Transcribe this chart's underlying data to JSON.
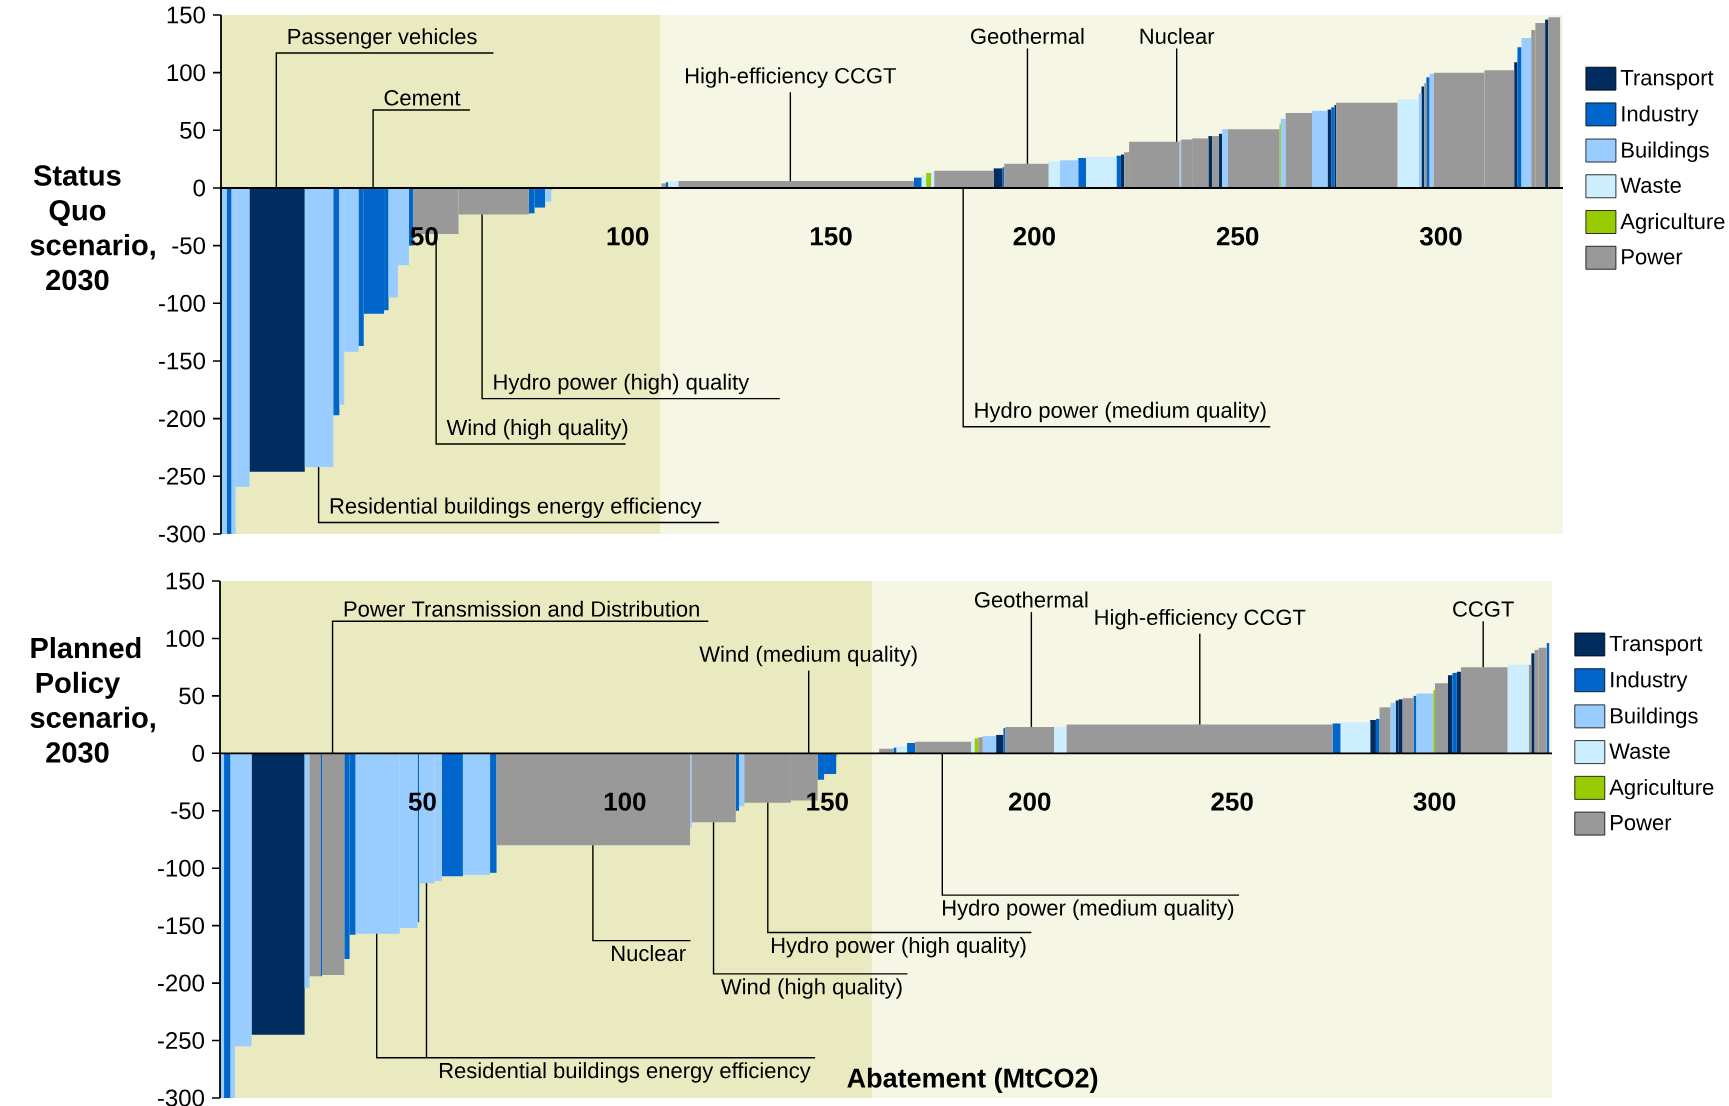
{
  "chart_data": [
    {
      "type": "histogram",
      "ylabel": "Status Quo scenario, 2030",
      "bins": [
        0,
        1.4,
        2.6,
        3.6,
        7,
        20.6,
        27.6,
        29.1,
        30.3,
        33.8,
        35.1,
        40.1,
        41.2,
        43.5,
        46.2,
        47.3,
        58.4,
        75.7,
        77.1,
        79.7,
        81.2,
        81.5,
        108.3,
        109.4,
        110,
        112.5,
        170.4,
        172.3,
        173.4,
        174.6,
        175.4,
        190,
        192.2,
        192.6,
        203.5,
        206.3,
        210.8,
        212.7,
        220.2,
        221.3,
        222.1,
        223.3,
        235.7,
        236.1,
        238.8,
        242.8,
        243.7,
        245.4,
        246.2,
        247.6,
        260.3,
        260.6,
        261.8,
        268.3,
        272.1,
        273,
        273.8,
        274.2,
        289.3,
        294.5,
        295.2,
        295.9,
        296.4,
        297.2,
        298.2,
        310.7,
        318,
        318.8,
        319.8,
        322.2,
        323.2,
        325.6,
        326.4,
        329.3
      ],
      "series": [
        {
          "name": "Transport",
          "color": "#002c5f",
          "values": [
            null,
            null,
            null,
            null,
            -246,
            null,
            null,
            null,
            null,
            null,
            null,
            null,
            null,
            null,
            null,
            null,
            null,
            null,
            null,
            null,
            null,
            null,
            null,
            null,
            null,
            null,
            null,
            null,
            null,
            null,
            null,
            17,
            null,
            null,
            null,
            null,
            null,
            null,
            null,
            29,
            null,
            null,
            null,
            null,
            null,
            45,
            null,
            47,
            null,
            null,
            null,
            null,
            null,
            null,
            68,
            null,
            72,
            null,
            null,
            null,
            88,
            null,
            null,
            null,
            null,
            null,
            109,
            null,
            null,
            null,
            null,
            146,
            null
          ]
        },
        {
          "name": "Industry",
          "color": "#0066cc",
          "values": [
            null,
            -300,
            null,
            null,
            null,
            null,
            -197,
            null,
            null,
            -137,
            -109,
            -106,
            null,
            null,
            -50,
            null,
            null,
            -22,
            -17,
            null,
            null,
            null,
            null,
            5,
            null,
            null,
            9,
            null,
            null,
            null,
            null,
            null,
            18,
            null,
            null,
            null,
            26,
            null,
            28,
            null,
            null,
            null,
            null,
            null,
            null,
            null,
            null,
            null,
            null,
            null,
            null,
            null,
            null,
            null,
            null,
            70,
            null,
            null,
            null,
            null,
            null,
            null,
            96,
            null,
            null,
            null,
            null,
            122,
            null,
            null,
            null,
            null,
            null
          ]
        },
        {
          "name": "Buildings",
          "color": "#99ccff",
          "values": [
            -300,
            null,
            -300,
            -259,
            null,
            -242,
            null,
            -188,
            -142,
            null,
            null,
            null,
            -95,
            -67,
            null,
            null,
            null,
            null,
            null,
            -12,
            null,
            null,
            null,
            null,
            null,
            null,
            null,
            null,
            null,
            null,
            null,
            null,
            null,
            null,
            null,
            24,
            null,
            null,
            null,
            null,
            null,
            null,
            41,
            null,
            null,
            null,
            null,
            null,
            51,
            null,
            null,
            60,
            null,
            67,
            null,
            null,
            null,
            null,
            null,
            82,
            null,
            null,
            null,
            99,
            null,
            null,
            null,
            null,
            130,
            null,
            null,
            null,
            null
          ]
        },
        {
          "name": "Waste",
          "color": "#cceeff",
          "values": [
            null,
            null,
            null,
            null,
            null,
            null,
            null,
            null,
            null,
            null,
            null,
            null,
            null,
            null,
            null,
            null,
            null,
            null,
            null,
            null,
            null,
            null,
            null,
            null,
            6,
            null,
            null,
            11,
            null,
            14,
            null,
            null,
            null,
            null,
            23,
            null,
            null,
            27,
            null,
            null,
            null,
            null,
            null,
            null,
            null,
            null,
            null,
            null,
            null,
            null,
            null,
            null,
            null,
            null,
            null,
            null,
            null,
            null,
            77,
            null,
            null,
            null,
            null,
            null,
            null,
            null,
            null,
            null,
            null,
            null,
            null,
            null,
            null
          ]
        },
        {
          "name": "Agriculture",
          "color": "#99cc00",
          "values": [
            null,
            null,
            null,
            null,
            null,
            null,
            null,
            null,
            null,
            null,
            null,
            null,
            null,
            null,
            null,
            null,
            null,
            null,
            null,
            null,
            -2,
            null,
            null,
            null,
            null,
            null,
            null,
            null,
            13,
            null,
            null,
            null,
            null,
            null,
            null,
            null,
            null,
            null,
            null,
            null,
            null,
            null,
            null,
            null,
            null,
            null,
            null,
            null,
            null,
            null,
            56,
            null,
            null,
            null,
            null,
            null,
            null,
            null,
            null,
            null,
            null,
            null,
            null,
            null,
            null,
            null,
            null,
            null,
            null,
            null,
            null,
            null,
            null
          ]
        },
        {
          "name": "Power",
          "color": "#999999",
          "values": [
            null,
            null,
            null,
            null,
            null,
            null,
            null,
            null,
            null,
            null,
            null,
            null,
            null,
            null,
            null,
            -40,
            -23,
            null,
            null,
            null,
            null,
            null,
            4,
            null,
            null,
            6,
            null,
            null,
            null,
            null,
            15,
            null,
            null,
            21,
            null,
            null,
            null,
            null,
            null,
            null,
            31,
            40,
            null,
            42,
            43,
            null,
            45,
            null,
            null,
            51,
            null,
            null,
            65,
            null,
            null,
            null,
            null,
            74,
            null,
            null,
            null,
            91,
            null,
            null,
            100,
            102,
            null,
            null,
            null,
            137,
            143,
            null,
            148
          ]
        }
      ],
      "xlim": [
        0,
        330
      ],
      "ylim": [
        -300,
        150
      ],
      "xticks": [
        50,
        100,
        150,
        200,
        250,
        300
      ],
      "yticks": [
        -300,
        -250,
        -200,
        -150,
        -100,
        -50,
        0,
        50,
        100,
        150
      ],
      "legend": "right",
      "bands": [
        {
          "axis": "x",
          "from": 0,
          "to": 108,
          "color": "#eaeac0"
        }
      ],
      "annotations": [
        {
          "text": "Passenger vehicles",
          "x": 13.6,
          "y": 0
        },
        {
          "text": "Cement",
          "x": 37.4,
          "y": 0
        },
        {
          "text": "Wind (high quality)",
          "x": 52.9,
          "y": -40
        },
        {
          "text": "Hydro power (high) quality",
          "x": 64.2,
          "y": -23
        },
        {
          "text": "Residential buildings energy efficiency",
          "x": 24,
          "y": -242
        },
        {
          "text": "High-efficiency CCGT",
          "x": 140,
          "y": 6
        },
        {
          "text": "Geothermal",
          "x": 198.3,
          "y": 21
        },
        {
          "text": "Nuclear",
          "x": 235,
          "y": 40
        },
        {
          "text": "Hydro power (medium quality)",
          "x": 182.5,
          "y": 0
        }
      ]
    },
    {
      "type": "histogram",
      "ylabel": "Planned Policy scenario, 2030",
      "xlabel": "Abatement (MtCO2)",
      "bins": [
        0,
        1,
        2.6,
        3.7,
        7.8,
        20.9,
        22.1,
        24.8,
        25.2,
        30.7,
        32,
        33.5,
        44.4,
        48.8,
        49.2,
        53,
        54.8,
        60,
        66.7,
        68.3,
        116.1,
        116.5,
        127.4,
        128.2,
        129.5,
        141,
        147.6,
        149.2,
        152.2,
        152.5,
        162.8,
        166.4,
        167.1,
        169.7,
        171.7,
        185.5,
        186.4,
        187.3,
        188.4,
        191.7,
        193.5,
        194,
        206,
        209.1,
        274.8,
        276.8,
        284.1,
        285.5,
        286.4,
        289.1,
        290.4,
        291.1,
        292.1,
        294.8,
        295.5,
        299.7,
        300.1,
        303.3,
        304.4,
        305.5,
        306.5,
        318,
        323.3,
        323.9,
        324.7,
        325.7,
        327.7,
        328.3
      ],
      "series": [
        {
          "name": "Transport",
          "color": "#002c5f",
          "values": [
            null,
            null,
            null,
            null,
            -245,
            null,
            null,
            null,
            null,
            null,
            null,
            null,
            null,
            null,
            null,
            null,
            null,
            null,
            null,
            null,
            null,
            null,
            null,
            null,
            null,
            null,
            null,
            null,
            null,
            null,
            null,
            null,
            null,
            null,
            null,
            null,
            null,
            null,
            null,
            16,
            null,
            null,
            null,
            null,
            null,
            null,
            29,
            null,
            null,
            null,
            46,
            47,
            null,
            null,
            null,
            null,
            null,
            68,
            null,
            71,
            null,
            null,
            null,
            87,
            null,
            null,
            null
          ]
        },
        {
          "name": "Industry",
          "color": "#0066cc",
          "values": [
            null,
            -300,
            null,
            null,
            null,
            null,
            null,
            -194,
            null,
            -179,
            -158,
            null,
            null,
            -147,
            null,
            null,
            -107,
            null,
            -104,
            null,
            null,
            null,
            -50,
            null,
            null,
            null,
            -23,
            -18,
            null,
            null,
            null,
            5,
            null,
            9,
            null,
            null,
            null,
            null,
            null,
            null,
            22,
            null,
            null,
            null,
            26,
            null,
            null,
            30,
            null,
            null,
            null,
            null,
            null,
            50,
            null,
            null,
            null,
            null,
            70,
            null,
            null,
            null,
            null,
            null,
            null,
            null,
            96
          ]
        },
        {
          "name": "Buildings",
          "color": "#99ccff",
          "values": [
            -300,
            null,
            -300,
            -255,
            null,
            -204,
            null,
            null,
            null,
            null,
            null,
            -157,
            -152,
            null,
            -113,
            -111,
            null,
            -106,
            null,
            null,
            -65,
            null,
            null,
            -46,
            null,
            null,
            null,
            null,
            null,
            null,
            null,
            null,
            null,
            null,
            null,
            null,
            null,
            null,
            15,
            null,
            null,
            null,
            null,
            null,
            null,
            null,
            null,
            null,
            null,
            44,
            null,
            null,
            null,
            null,
            52,
            null,
            null,
            null,
            null,
            null,
            null,
            null,
            null,
            null,
            null,
            null,
            null
          ]
        },
        {
          "name": "Waste",
          "color": "#cceeff",
          "values": [
            null,
            null,
            null,
            null,
            null,
            null,
            null,
            null,
            null,
            null,
            null,
            null,
            null,
            null,
            null,
            null,
            null,
            null,
            null,
            null,
            null,
            null,
            null,
            null,
            null,
            null,
            null,
            null,
            null,
            null,
            null,
            null,
            6,
            null,
            null,
            11,
            null,
            null,
            null,
            null,
            null,
            null,
            23,
            null,
            null,
            27,
            null,
            null,
            null,
            null,
            null,
            null,
            null,
            null,
            null,
            null,
            null,
            null,
            null,
            null,
            null,
            77,
            null,
            null,
            null,
            null,
            null
          ]
        },
        {
          "name": "Agriculture",
          "color": "#99cc00",
          "values": [
            null,
            null,
            null,
            null,
            null,
            null,
            null,
            null,
            null,
            null,
            null,
            null,
            null,
            null,
            null,
            null,
            null,
            null,
            null,
            null,
            null,
            null,
            null,
            null,
            null,
            null,
            null,
            null,
            -3,
            null,
            null,
            null,
            null,
            null,
            null,
            null,
            13,
            null,
            null,
            null,
            null,
            null,
            null,
            null,
            null,
            null,
            null,
            null,
            null,
            null,
            null,
            null,
            null,
            null,
            null,
            55,
            null,
            null,
            null,
            null,
            null,
            null,
            null,
            null,
            null,
            null,
            null
          ]
        },
        {
          "name": "Power",
          "color": "#999999",
          "values": [
            null,
            null,
            null,
            null,
            null,
            null,
            -194,
            null,
            -193,
            null,
            null,
            null,
            null,
            null,
            null,
            null,
            null,
            null,
            null,
            -80,
            null,
            -60,
            null,
            null,
            -43,
            -41,
            null,
            null,
            null,
            null,
            4,
            null,
            null,
            null,
            10,
            null,
            null,
            14,
            null,
            null,
            null,
            23,
            null,
            25,
            null,
            null,
            null,
            null,
            40,
            null,
            null,
            null,
            48,
            null,
            null,
            null,
            61,
            null,
            null,
            null,
            75,
            null,
            77,
            null,
            90,
            92,
            null
          ]
        }
      ],
      "xlim": [
        0,
        329
      ],
      "ylim": [
        -300,
        150
      ],
      "xticks": [
        50,
        100,
        150,
        200,
        250,
        300
      ],
      "yticks": [
        -300,
        -250,
        -200,
        -150,
        -100,
        -50,
        0,
        50,
        100,
        150
      ],
      "legend": "right",
      "bands": [
        {
          "axis": "x",
          "from": 0,
          "to": 161,
          "color": "#eaeac0"
        }
      ],
      "annotations": [
        {
          "text": "Power Transmission and Distribution",
          "x": 27.8,
          "y": 0
        },
        {
          "text": "Wind (medium quality)",
          "x": 145.4,
          "y": 0
        },
        {
          "text": "Geothermal",
          "x": 200.4,
          "y": 23
        },
        {
          "text": "High-efficiency CCGT",
          "x": 242,
          "y": 25
        },
        {
          "text": "CCGT",
          "x": 312,
          "y": 75
        },
        {
          "text": "Nuclear",
          "x": 92.1,
          "y": -80
        },
        {
          "text": "Wind (high quality)",
          "x": 121.9,
          "y": -60
        },
        {
          "text": "Hydro power (high quality)",
          "x": 135.3,
          "y": -43
        },
        {
          "text": "Hydro power (medium quality)",
          "x": 178.4,
          "y": 0
        },
        {
          "text": "Residential buildings energy efficiency",
          "x": 38.7,
          "y": -157
        }
      ]
    }
  ]
}
